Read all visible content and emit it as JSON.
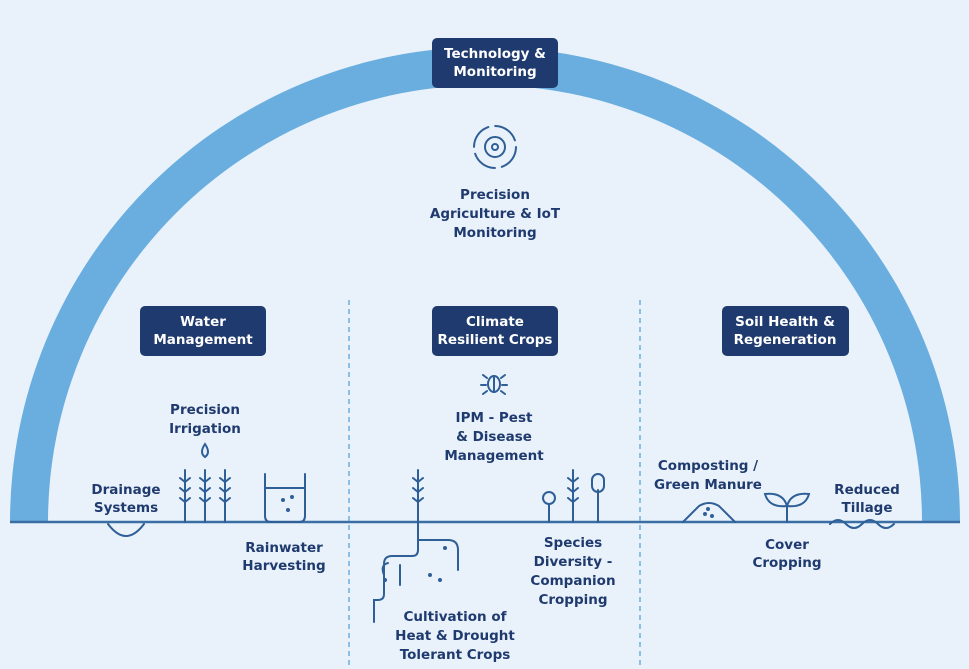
{
  "top": {
    "title": [
      "Technology &",
      "Monitoring"
    ],
    "item": [
      "Precision",
      "Agriculture & IoT",
      "Monitoring"
    ]
  },
  "sections": [
    {
      "title": [
        "Water",
        "Management"
      ],
      "items": [
        {
          "label": [
            "Precision",
            "Irrigation"
          ]
        },
        {
          "label": [
            "Drainage",
            "Systems"
          ]
        },
        {
          "label": [
            "Rainwater",
            "Harvesting"
          ]
        }
      ]
    },
    {
      "title": [
        "Climate",
        "Resilient Crops"
      ],
      "items": [
        {
          "label": [
            "IPM - Pest",
            "& Disease",
            "Management"
          ]
        },
        {
          "label": [
            "Species",
            "Diversity -",
            "Companion",
            "Cropping"
          ]
        },
        {
          "label": [
            "Cultivation of",
            "Heat & Drought",
            "Tolerant Crops"
          ]
        }
      ]
    },
    {
      "title": [
        "Soil Health &",
        "Regeneration"
      ],
      "items": [
        {
          "label": [
            "Composting /",
            "Green Manure"
          ]
        },
        {
          "label": [
            "Reduced",
            "Tillage"
          ]
        },
        {
          "label": [
            "Cover",
            "Cropping"
          ]
        }
      ]
    }
  ]
}
